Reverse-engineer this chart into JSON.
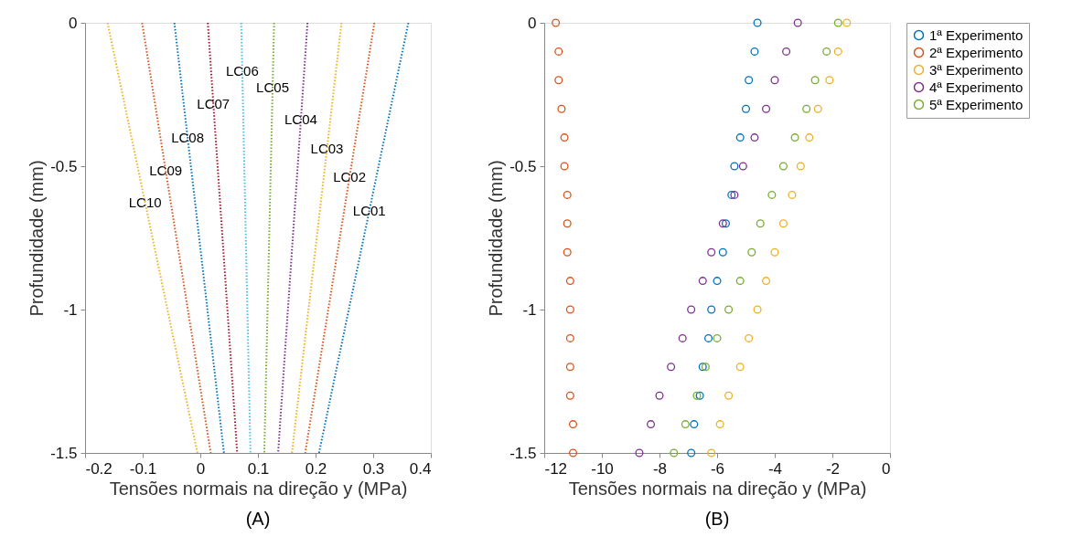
{
  "chart_data": [
    {
      "type": "line",
      "title": "(A)",
      "xlabel": "Tensões normais na direção y (MPa)",
      "ylabel": "Profundidade (mm)",
      "xlim": [
        -0.2,
        0.4
      ],
      "xticks": [
        -0.2,
        -0.1,
        0,
        0.1,
        0.2,
        0.3,
        0.4
      ],
      "ylim": [
        -1.5,
        0
      ],
      "yticks": [
        -1.5,
        -1,
        -0.5,
        0
      ],
      "grid": false,
      "legend": false,
      "marker": "none",
      "line_style": "dotted",
      "series": [
        {
          "name": "LC01",
          "color": "#0072bd",
          "x": [
            0.361,
            0.206
          ],
          "values": [
            0,
            -1.5
          ]
        },
        {
          "name": "LC02",
          "color": "#d95319",
          "x": [
            0.302,
            0.182
          ],
          "values": [
            0,
            -1.5
          ]
        },
        {
          "name": "LC03",
          "color": "#edb120",
          "x": [
            0.245,
            0.159
          ],
          "values": [
            0,
            -1.5
          ]
        },
        {
          "name": "LC04",
          "color": "#7e2f8e",
          "x": [
            0.186,
            0.135
          ],
          "values": [
            0,
            -1.5
          ]
        },
        {
          "name": "LC05",
          "color": "#77ac30",
          "x": [
            0.128,
            0.111
          ],
          "values": [
            0,
            -1.5
          ]
        },
        {
          "name": "LC06",
          "color": "#4dbeee",
          "x": [
            0.071,
            0.087
          ],
          "values": [
            0,
            -1.5
          ]
        },
        {
          "name": "LC07",
          "color": "#a2142f",
          "x": [
            0.013,
            0.064
          ],
          "values": [
            0,
            -1.5
          ]
        },
        {
          "name": "LC08",
          "color": "#0072bd",
          "x": [
            -0.045,
            0.041
          ],
          "values": [
            0,
            -1.5
          ]
        },
        {
          "name": "LC09",
          "color": "#d95319",
          "x": [
            -0.101,
            0.018
          ],
          "values": [
            0,
            -1.5
          ]
        },
        {
          "name": "LC10",
          "color": "#edb120",
          "x": [
            -0.161,
            -0.005
          ],
          "values": [
            0,
            -1.5
          ]
        }
      ]
    },
    {
      "type": "scatter",
      "title": "(B)",
      "xlabel": "Tensões normais na direção y (MPa)",
      "ylabel": "Profundidade (mm)",
      "xlim": [
        -12,
        0
      ],
      "xticks": [
        -12,
        -10,
        -8,
        -6,
        -4,
        -2,
        0
      ],
      "ylim": [
        -1.5,
        0
      ],
      "yticks": [
        -1.5,
        -1,
        -0.5,
        0
      ],
      "grid": false,
      "legend": "right",
      "marker": "circle",
      "series": [
        {
          "name": "1ª Experimento",
          "color": "#0072bd",
          "x": [
            -4.6,
            -4.7,
            -4.9,
            -5.0,
            -5.2,
            -5.4,
            -5.5,
            -5.7,
            -5.8,
            -6.0,
            -6.2,
            -6.3,
            -6.5,
            -6.6,
            -6.8,
            -6.9
          ],
          "values": [
            0,
            -0.1,
            -0.2,
            -0.3,
            -0.4,
            -0.5,
            -0.6,
            -0.7,
            -0.8,
            -0.9,
            -1.0,
            -1.1,
            -1.2,
            -1.3,
            -1.4,
            -1.5
          ]
        },
        {
          "name": "2ª Experimento",
          "color": "#d95319",
          "x": [
            -11.6,
            -11.5,
            -11.5,
            -11.4,
            -11.3,
            -11.3,
            -11.2,
            -11.2,
            -11.2,
            -11.1,
            -11.1,
            -11.1,
            -11.1,
            -11.1,
            -11.0,
            -11.0
          ],
          "values": [
            0,
            -0.1,
            -0.2,
            -0.3,
            -0.4,
            -0.5,
            -0.6,
            -0.7,
            -0.8,
            -0.9,
            -1.0,
            -1.1,
            -1.2,
            -1.3,
            -1.4,
            -1.5
          ]
        },
        {
          "name": "3ª Experimento",
          "color": "#edb120",
          "x": [
            -1.5,
            -1.8,
            -2.1,
            -2.5,
            -2.8,
            -3.1,
            -3.4,
            -3.7,
            -4.0,
            -4.3,
            -4.6,
            -4.9,
            -5.2,
            -5.6,
            -5.9,
            -6.2
          ],
          "values": [
            0,
            -0.1,
            -0.2,
            -0.3,
            -0.4,
            -0.5,
            -0.6,
            -0.7,
            -0.8,
            -0.9,
            -1.0,
            -1.1,
            -1.2,
            -1.3,
            -1.4,
            -1.5
          ]
        },
        {
          "name": "4ª Experimento",
          "color": "#7e2f8e",
          "x": [
            -3.2,
            -3.6,
            -4.0,
            -4.3,
            -4.7,
            -5.1,
            -5.4,
            -5.8,
            -6.2,
            -6.5,
            -6.9,
            -7.2,
            -7.6,
            -8.0,
            -8.3,
            -8.7
          ],
          "values": [
            0,
            -0.1,
            -0.2,
            -0.3,
            -0.4,
            -0.5,
            -0.6,
            -0.7,
            -0.8,
            -0.9,
            -1.0,
            -1.1,
            -1.2,
            -1.3,
            -1.4,
            -1.5
          ]
        },
        {
          "name": "5ª Experimento",
          "color": "#77ac30",
          "x": [
            -1.8,
            -2.2,
            -2.6,
            -2.9,
            -3.3,
            -3.7,
            -4.1,
            -4.5,
            -4.8,
            -5.2,
            -5.6,
            -6.0,
            -6.4,
            -6.7,
            -7.1,
            -7.5
          ],
          "values": [
            0,
            -0.1,
            -0.2,
            -0.3,
            -0.4,
            -0.5,
            -0.6,
            -0.7,
            -0.8,
            -0.9,
            -1.0,
            -1.1,
            -1.2,
            -1.3,
            -1.4,
            -1.5
          ]
        }
      ]
    }
  ]
}
